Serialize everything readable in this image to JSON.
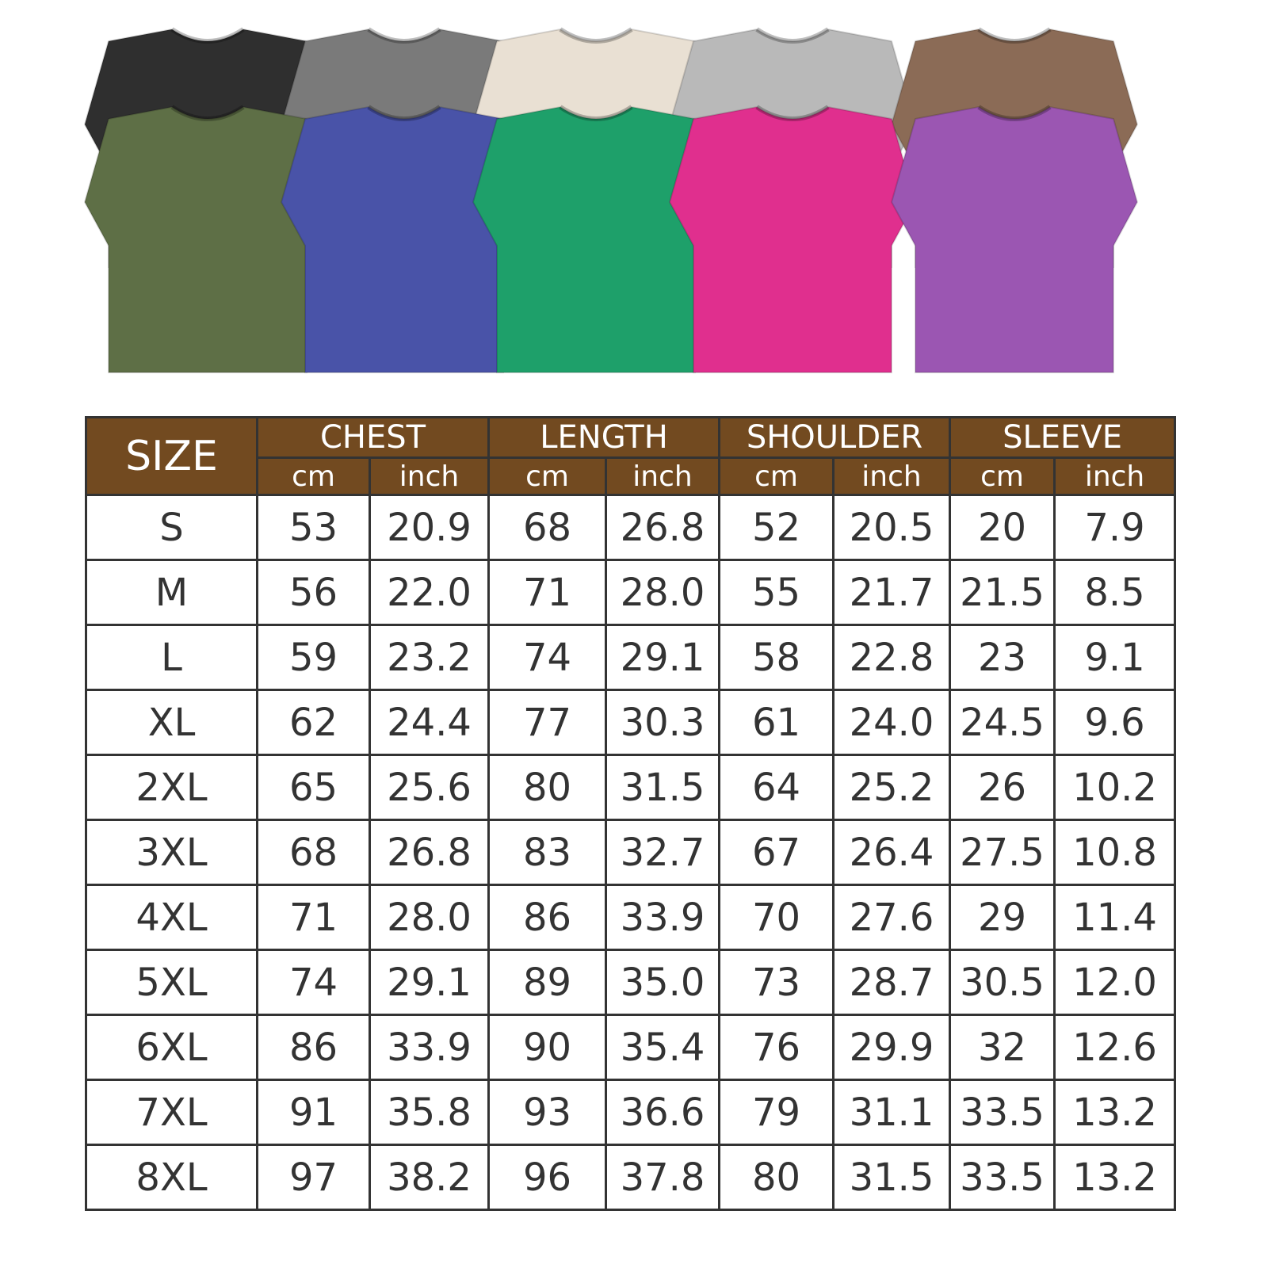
{
  "shirts": {
    "back_row": [
      {
        "color_name": "black",
        "hex": "#2f2f2f"
      },
      {
        "color_name": "gray",
        "hex": "#7a7a7a"
      },
      {
        "color_name": "cream",
        "hex": "#e9e0d3"
      },
      {
        "color_name": "light-gray",
        "hex": "#b9b9b9"
      },
      {
        "color_name": "brown",
        "hex": "#8b6b56"
      }
    ],
    "front_row": [
      {
        "color_name": "olive",
        "hex": "#5e6f46"
      },
      {
        "color_name": "blue",
        "hex": "#4953a8"
      },
      {
        "color_name": "green",
        "hex": "#1ea06a"
      },
      {
        "color_name": "pink",
        "hex": "#e02f8e"
      },
      {
        "color_name": "purple",
        "hex": "#9b56b2"
      }
    ]
  },
  "table": {
    "header_color": "#724a20",
    "size_label": "SIZE",
    "groups": [
      "CHEST",
      "LENGTH",
      "SHOULDER",
      "SLEEVE"
    ],
    "units": [
      "cm",
      "inch"
    ],
    "rows": [
      [
        "S",
        "53",
        "20.9",
        "68",
        "26.8",
        "52",
        "20.5",
        "20",
        "7.9"
      ],
      [
        "M",
        "56",
        "22.0",
        "71",
        "28.0",
        "55",
        "21.7",
        "21.5",
        "8.5"
      ],
      [
        "L",
        "59",
        "23.2",
        "74",
        "29.1",
        "58",
        "22.8",
        "23",
        "9.1"
      ],
      [
        "XL",
        "62",
        "24.4",
        "77",
        "30.3",
        "61",
        "24.0",
        "24.5",
        "9.6"
      ],
      [
        "2XL",
        "65",
        "25.6",
        "80",
        "31.5",
        "64",
        "25.2",
        "26",
        "10.2"
      ],
      [
        "3XL",
        "68",
        "26.8",
        "83",
        "32.7",
        "67",
        "26.4",
        "27.5",
        "10.8"
      ],
      [
        "4XL",
        "71",
        "28.0",
        "86",
        "33.9",
        "70",
        "27.6",
        "29",
        "11.4"
      ],
      [
        "5XL",
        "74",
        "29.1",
        "89",
        "35.0",
        "73",
        "28.7",
        "30.5",
        "12.0"
      ],
      [
        "6XL",
        "86",
        "33.9",
        "90",
        "35.4",
        "76",
        "29.9",
        "32",
        "12.6"
      ],
      [
        "7XL",
        "91",
        "35.8",
        "93",
        "36.6",
        "79",
        "31.1",
        "33.5",
        "13.2"
      ],
      [
        "8XL",
        "97",
        "38.2",
        "96",
        "37.8",
        "80",
        "31.5",
        "33.5",
        "13.2"
      ]
    ]
  }
}
